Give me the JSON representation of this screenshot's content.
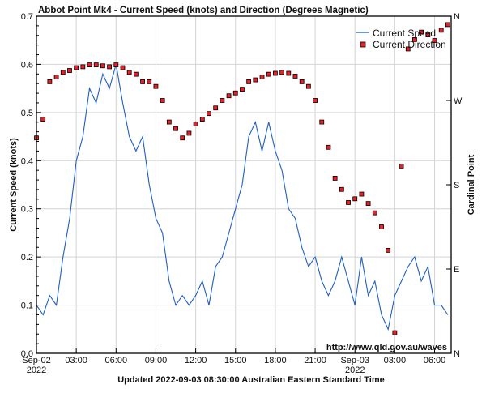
{
  "chart_data": {
    "type": "line",
    "title": "Abbot Point Mk4 - Current Speed (knots) and Direction (Degrees Magnetic)",
    "ylabel": "Current Speed (knots)",
    "y2label": "Cardinal Point",
    "footer": "Updated 2022-09-03 08:30:00 Australian Eastern Standard Time",
    "watermark": "http://www.qld.gov.au/waves",
    "ylim": [
      0,
      0.7
    ],
    "y2lim": [
      0,
      360
    ],
    "xlim_hours": [
      0,
      31.25
    ],
    "grid": true,
    "legend_position": "top-right",
    "y_ticks": [
      "0.0",
      "0.1",
      "0.2",
      "0.3",
      "0.4",
      "0.5",
      "0.6",
      "0.7"
    ],
    "y2_ticks": [
      {
        "label": "N",
        "deg": 0
      },
      {
        "label": "E",
        "deg": 90
      },
      {
        "label": "S",
        "deg": 180
      },
      {
        "label": "W",
        "deg": 270
      },
      {
        "label": "N",
        "deg": 360
      }
    ],
    "x_ticks": [
      {
        "label": "Sep-02",
        "sub": "2022",
        "hour": 0
      },
      {
        "label": "03:00",
        "sub": "",
        "hour": 3
      },
      {
        "label": "06:00",
        "sub": "",
        "hour": 6
      },
      {
        "label": "09:00",
        "sub": "",
        "hour": 9
      },
      {
        "label": "12:00",
        "sub": "",
        "hour": 12
      },
      {
        "label": "15:00",
        "sub": "",
        "hour": 15
      },
      {
        "label": "18:00",
        "sub": "",
        "hour": 18
      },
      {
        "label": "21:00",
        "sub": "",
        "hour": 21
      },
      {
        "label": "Sep-03",
        "sub": "2022",
        "hour": 24
      },
      {
        "label": "03:00",
        "sub": "",
        "hour": 27
      },
      {
        "label": "06:00",
        "sub": "",
        "hour": 30
      }
    ],
    "x_hours_step": 0.5,
    "series": [
      {
        "name": "Current Speed",
        "kind": "line",
        "color": "#1f5fbf",
        "values": [
          0.1,
          0.08,
          0.12,
          0.1,
          0.2,
          0.28,
          0.4,
          0.45,
          0.55,
          0.52,
          0.58,
          0.55,
          0.6,
          0.52,
          0.45,
          0.42,
          0.45,
          0.35,
          0.28,
          0.25,
          0.15,
          0.1,
          0.12,
          0.1,
          0.12,
          0.15,
          0.1,
          0.18,
          0.2,
          0.25,
          0.3,
          0.35,
          0.45,
          0.48,
          0.42,
          0.48,
          0.42,
          0.38,
          0.3,
          0.28,
          0.22,
          0.18,
          0.2,
          0.15,
          0.12,
          0.15,
          0.2,
          0.15,
          0.1,
          0.2,
          0.12,
          0.15,
          0.08,
          0.05,
          0.12,
          0.15,
          0.18,
          0.2,
          0.15,
          0.18,
          0.1,
          0.1,
          0.08
        ]
      },
      {
        "name": "Current Direction",
        "kind": "scatter",
        "color": "#e8202a",
        "values": [
          230,
          250,
          290,
          295,
          300,
          302,
          305,
          306,
          308,
          308,
          307,
          306,
          308,
          305,
          300,
          298,
          290,
          290,
          285,
          270,
          247,
          240,
          230,
          235,
          245,
          250,
          256,
          262,
          270,
          275,
          278,
          282,
          290,
          292,
          295,
          298,
          299,
          300,
          299,
          296,
          290,
          285,
          270,
          247,
          220,
          187,
          175,
          161,
          165,
          170,
          160,
          150,
          135,
          110,
          22,
          200,
          325,
          335,
          343,
          340,
          334,
          345,
          351
        ]
      }
    ]
  }
}
